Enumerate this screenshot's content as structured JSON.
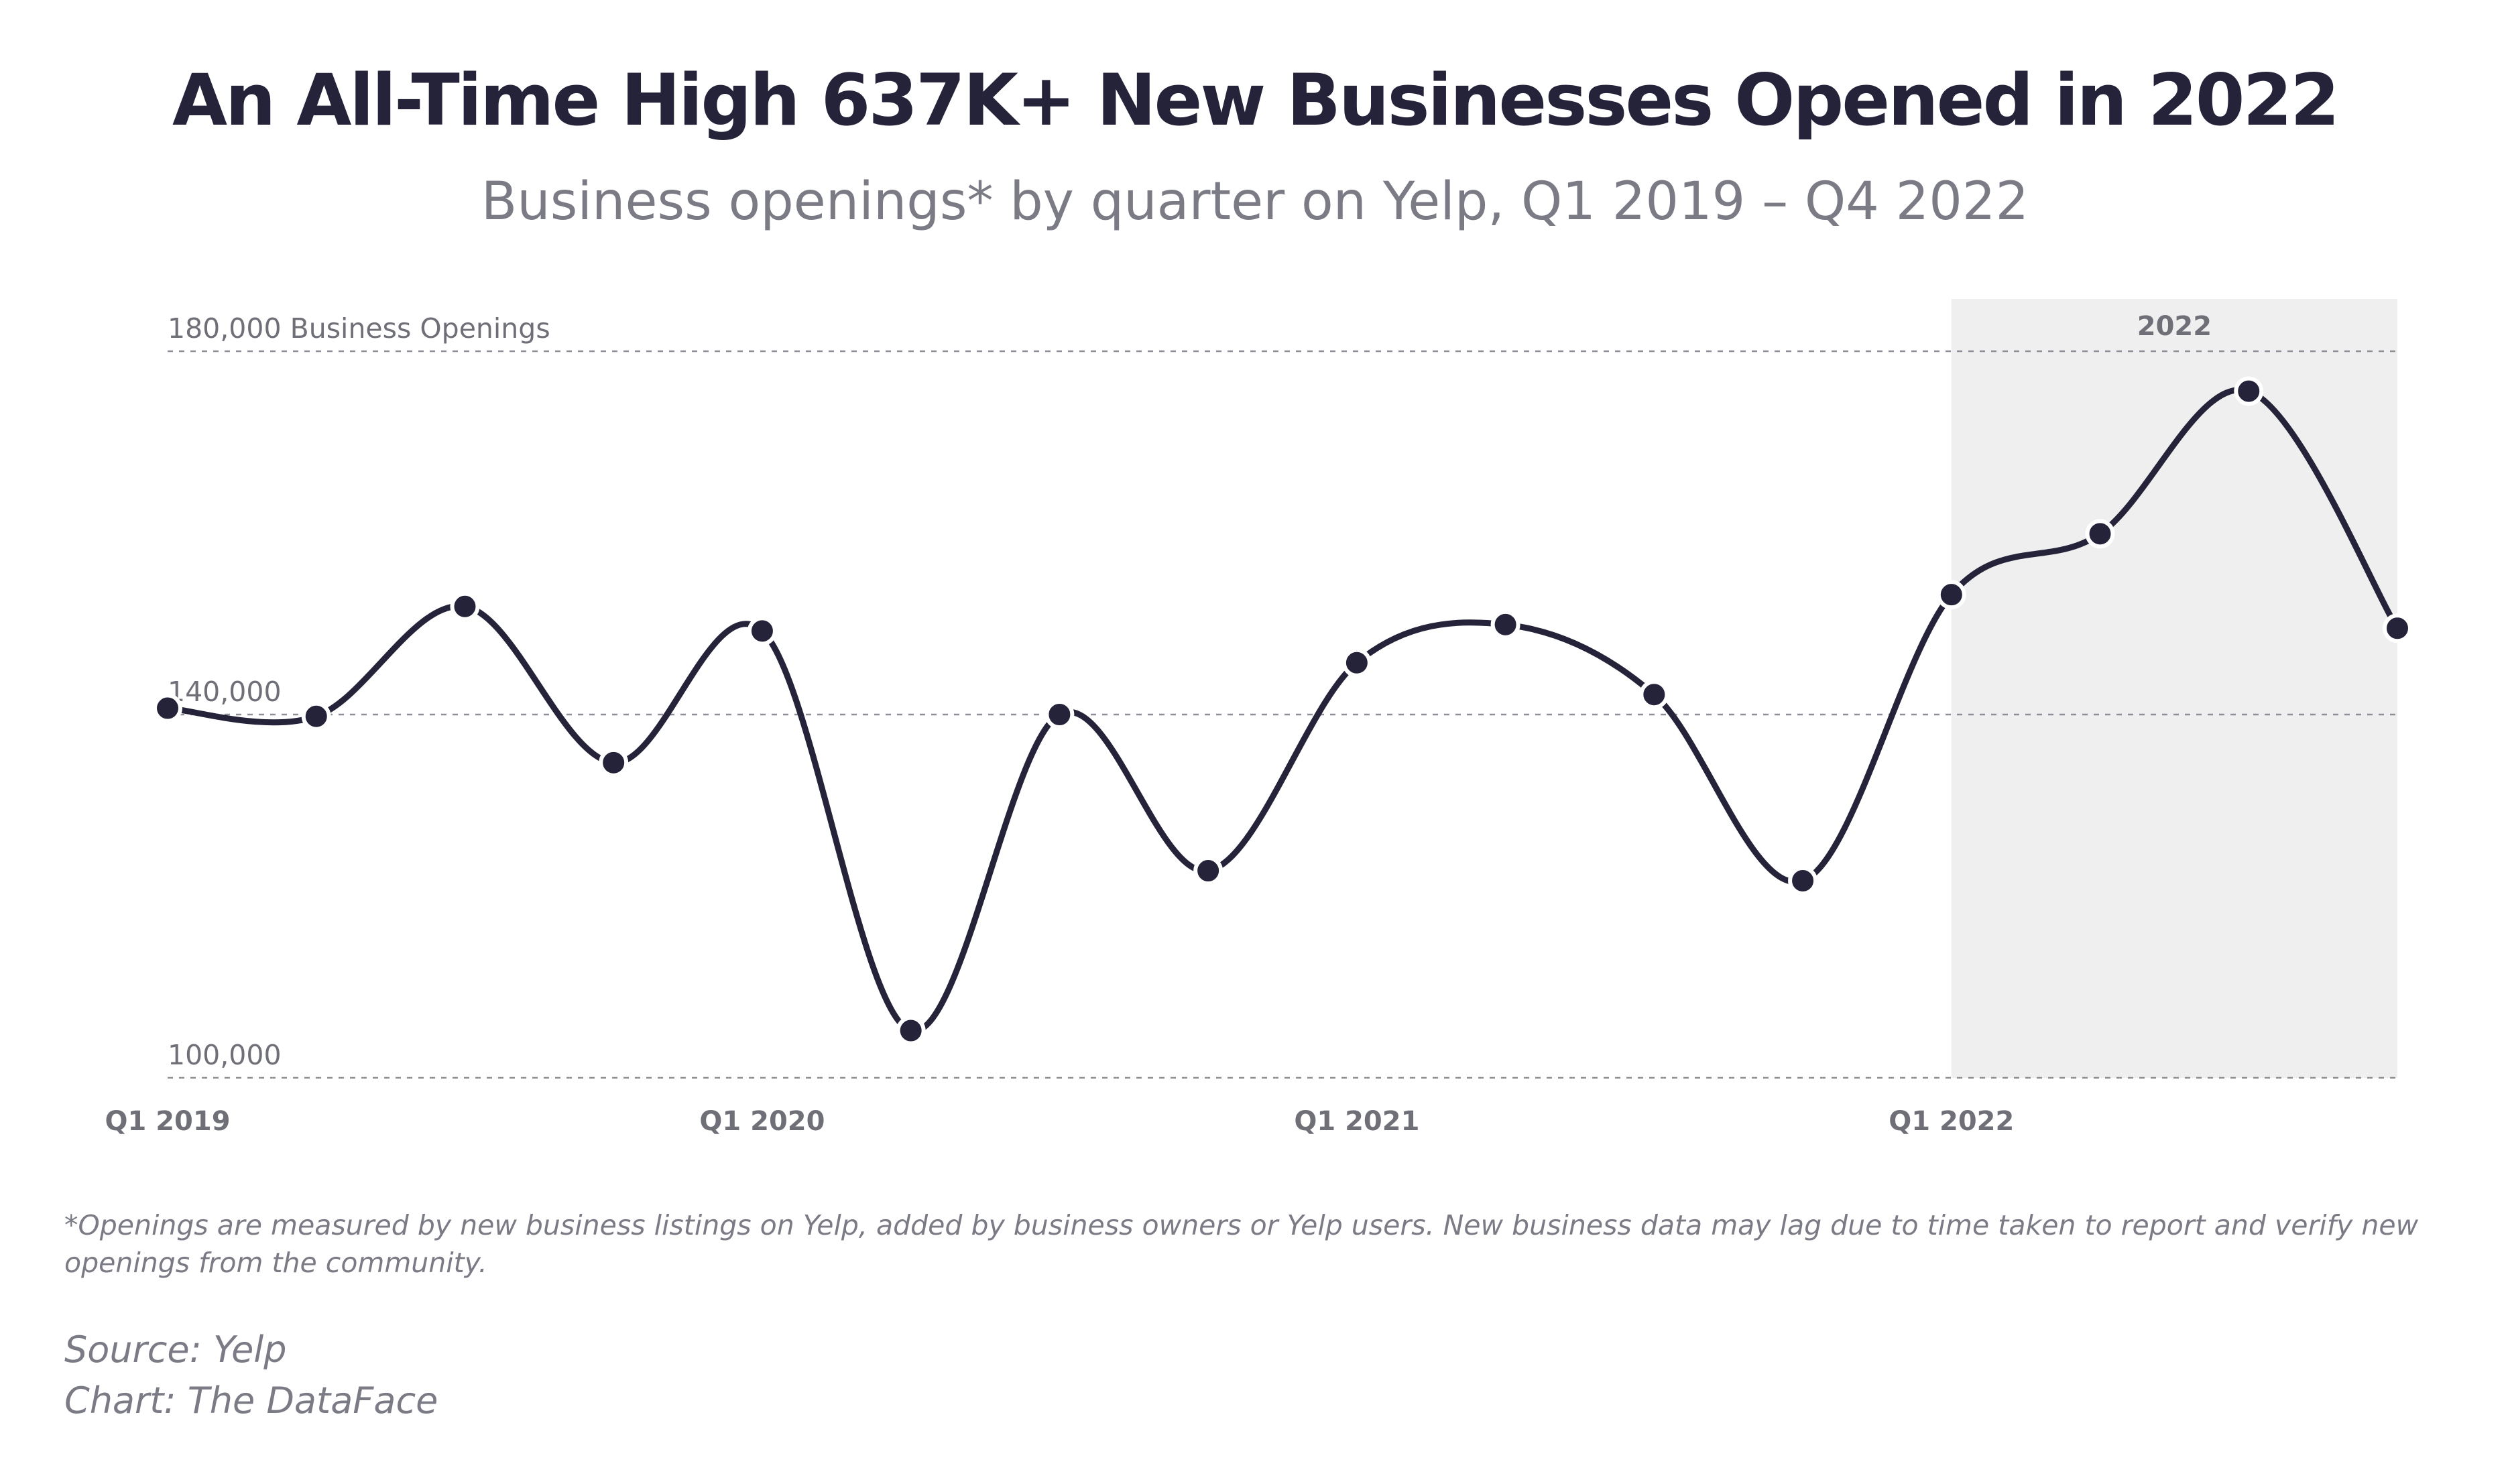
{
  "page": {
    "title": "An All-Time High 637K+ New Businesses Opened in 2022",
    "subtitle": "Business openings* by quarter on Yelp, Q1 2019 – Q4 2022",
    "footnote": "*Openings are measured by new business listings on Yelp, added by business owners or Yelp users. New business data may lag due to time taken to report and verify new openings from the community.",
    "source": "Source: Yelp",
    "credit": "Chart: The DataFace"
  },
  "chart_data": {
    "type": "line",
    "title": "An All-Time High 637K+ New Businesses Opened in 2022",
    "subtitle": "Business openings* by quarter on Yelp, Q1 2019 – Q4 2022",
    "xlabel": "",
    "ylabel": "Business Openings",
    "ylim": [
      100000,
      180000
    ],
    "y_ticks": [
      {
        "value": 180000,
        "label": "180,000 Business Openings"
      },
      {
        "value": 140000,
        "label": "140,000"
      },
      {
        "value": 100000,
        "label": "100,000"
      }
    ],
    "x_tick_labels": [
      {
        "index": 0,
        "label": "Q1 2019"
      },
      {
        "index": 4,
        "label": "Q1 2020"
      },
      {
        "index": 8,
        "label": "Q1 2021"
      },
      {
        "index": 12,
        "label": "Q1 2022"
      }
    ],
    "highlight": {
      "label": "2022",
      "start_index": 12,
      "end_index": 15,
      "color": "#efefef"
    },
    "categories": [
      "Q1 2019",
      "Q2 2019",
      "Q3 2019",
      "Q4 2019",
      "Q1 2020",
      "Q2 2020",
      "Q3 2020",
      "Q4 2020",
      "Q1 2021",
      "Q2 2021",
      "Q3 2021",
      "Q4 2021",
      "Q1 2022",
      "Q2 2022",
      "Q3 2022",
      "Q4 2022"
    ],
    "series": [
      {
        "name": "Business openings",
        "color": "#25233a",
        "values": [
          140700,
          139800,
          151900,
          134700,
          149200,
          105200,
          140000,
          122800,
          145700,
          149900,
          142200,
          121700,
          153200,
          159900,
          175600,
          149500
        ]
      }
    ],
    "grid": true,
    "legend": "none"
  }
}
